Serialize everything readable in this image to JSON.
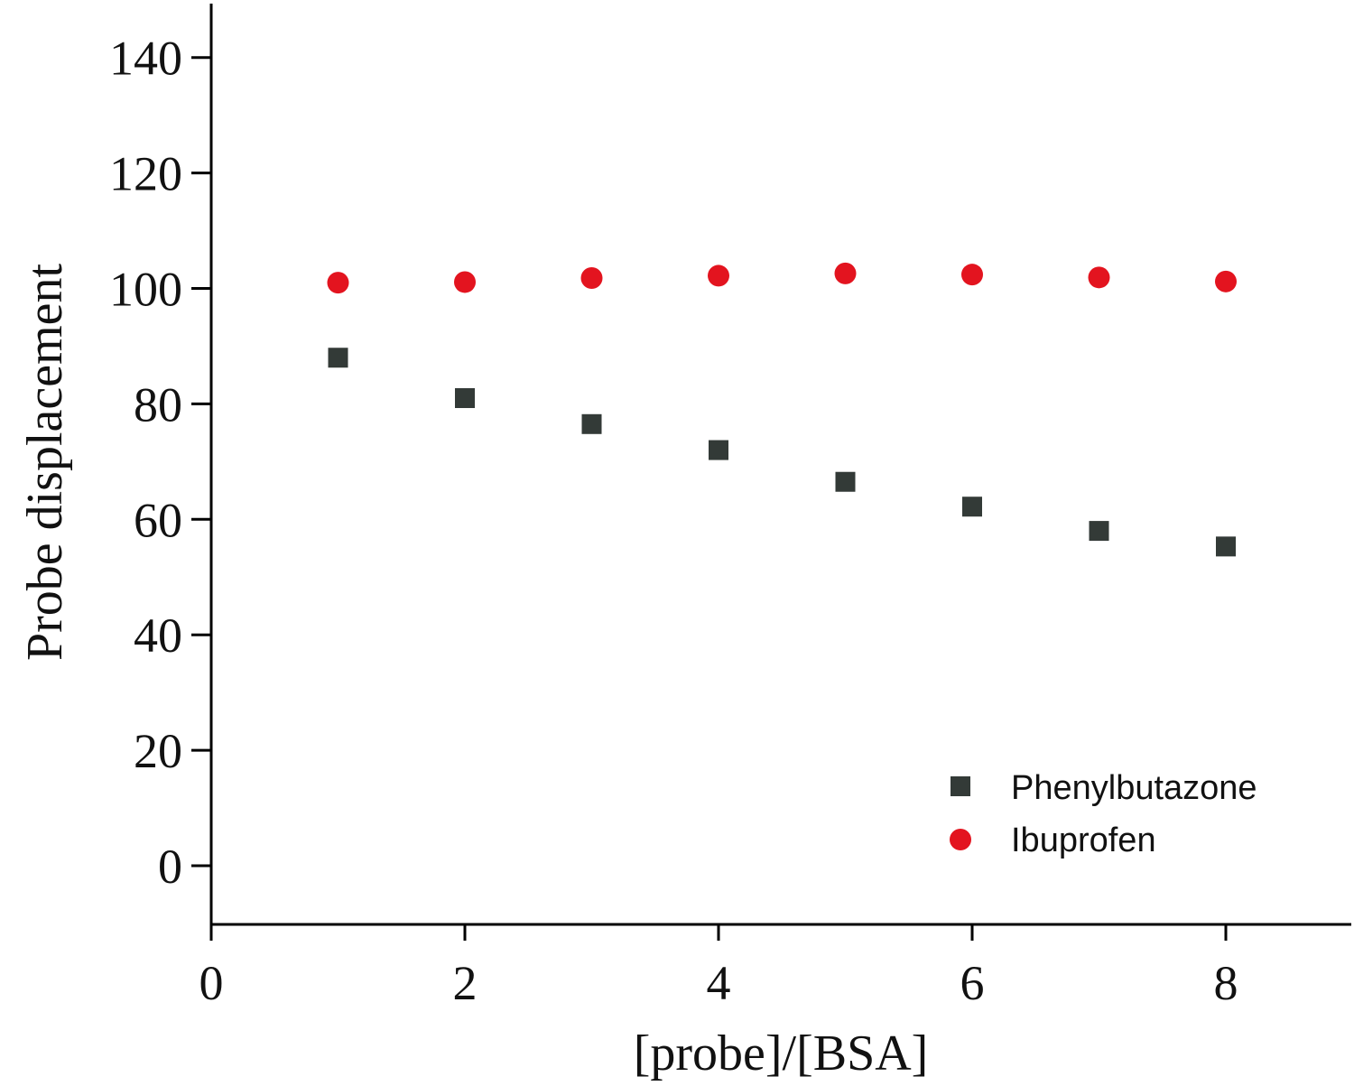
{
  "chart_data": {
    "type": "scatter",
    "title": "",
    "xlabel": "[probe]/[BSA]",
    "ylabel": "Probe displacement",
    "xlim": [
      0,
      9
    ],
    "ylim": [
      -10,
      150
    ],
    "x_ticks": [
      0,
      2,
      4,
      6,
      8
    ],
    "y_ticks": [
      0,
      20,
      40,
      60,
      80,
      100,
      120,
      140
    ],
    "grid": false,
    "legend_position": "bottom-right",
    "series": [
      {
        "name": "Phenylbutazone",
        "marker": "square",
        "color": "#333a37",
        "x": [
          1,
          2,
          3,
          4,
          5,
          6,
          7,
          8
        ],
        "y": [
          88.0,
          81.0,
          76.5,
          72.0,
          66.5,
          62.2,
          58.0,
          55.3
        ]
      },
      {
        "name": "Ibuprofen",
        "marker": "circle",
        "color": "#e3141f",
        "x": [
          1,
          2,
          3,
          4,
          5,
          6,
          7,
          8
        ],
        "y": [
          101.0,
          101.1,
          101.8,
          102.2,
          102.6,
          102.4,
          101.9,
          101.2
        ]
      }
    ]
  }
}
